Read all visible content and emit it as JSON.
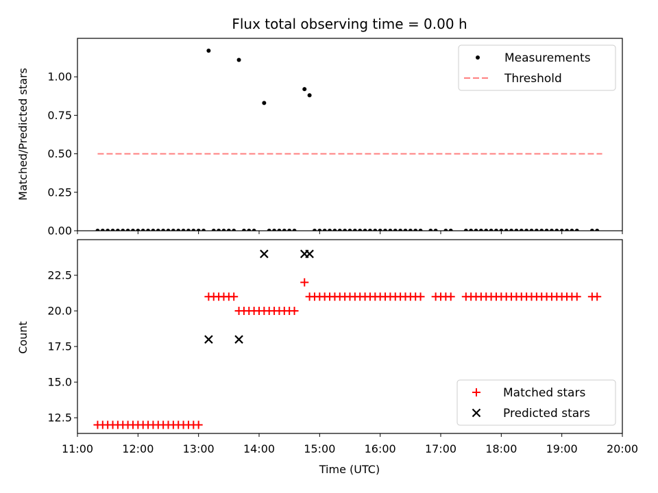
{
  "chart_data": [
    {
      "type": "scatter",
      "title": "Flux total observing time = 0.00 h",
      "xlabel": "",
      "ylabel": "Matched/Predicted stars",
      "xlim": [
        "11:00",
        "20:00"
      ],
      "ylim": [
        0,
        1.25
      ],
      "yticks": [
        "0.00",
        "0.25",
        "0.50",
        "0.75",
        "1.00"
      ],
      "legend": {
        "placement": "top-right",
        "entries": [
          "Measurements",
          "Threshold"
        ]
      },
      "series": [
        {
          "name": "Measurements",
          "marker": "dot",
          "color": "#000000",
          "points": [
            [
              "13:10",
              1.17
            ],
            [
              "13:40",
              1.11
            ],
            [
              "14:05",
              0.83
            ],
            [
              "14:45",
              0.92
            ],
            [
              "14:50",
              0.88
            ],
            [
              "11:20",
              0
            ],
            [
              "11:25",
              0
            ],
            [
              "11:30",
              0
            ],
            [
              "11:35",
              0
            ],
            [
              "11:40",
              0
            ],
            [
              "11:45",
              0
            ],
            [
              "11:50",
              0
            ],
            [
              "11:55",
              0
            ],
            [
              "12:00",
              0
            ],
            [
              "12:05",
              0
            ],
            [
              "12:10",
              0
            ],
            [
              "12:15",
              0
            ],
            [
              "12:20",
              0
            ],
            [
              "12:25",
              0
            ],
            [
              "12:30",
              0
            ],
            [
              "12:35",
              0
            ],
            [
              "12:40",
              0
            ],
            [
              "12:45",
              0
            ],
            [
              "12:50",
              0
            ],
            [
              "12:55",
              0
            ],
            [
              "13:00",
              0
            ],
            [
              "13:05",
              0
            ],
            [
              "13:15",
              0
            ],
            [
              "13:20",
              0
            ],
            [
              "13:25",
              0
            ],
            [
              "13:30",
              0
            ],
            [
              "13:35",
              0
            ],
            [
              "13:45",
              0
            ],
            [
              "13:50",
              0
            ],
            [
              "13:55",
              0
            ],
            [
              "14:10",
              0
            ],
            [
              "14:15",
              0
            ],
            [
              "14:20",
              0
            ],
            [
              "14:25",
              0
            ],
            [
              "14:30",
              0
            ],
            [
              "14:35",
              0
            ],
            [
              "14:55",
              0
            ],
            [
              "15:00",
              0
            ],
            [
              "15:05",
              0
            ],
            [
              "15:10",
              0
            ],
            [
              "15:15",
              0
            ],
            [
              "15:20",
              0
            ],
            [
              "15:25",
              0
            ],
            [
              "15:30",
              0
            ],
            [
              "15:35",
              0
            ],
            [
              "15:40",
              0
            ],
            [
              "15:45",
              0
            ],
            [
              "15:50",
              0
            ],
            [
              "15:55",
              0
            ],
            [
              "16:00",
              0
            ],
            [
              "16:05",
              0
            ],
            [
              "16:10",
              0
            ],
            [
              "16:15",
              0
            ],
            [
              "16:20",
              0
            ],
            [
              "16:25",
              0
            ],
            [
              "16:30",
              0
            ],
            [
              "16:35",
              0
            ],
            [
              "16:40",
              0
            ],
            [
              "16:50",
              0
            ],
            [
              "16:55",
              0
            ],
            [
              "17:05",
              0
            ],
            [
              "17:10",
              0
            ],
            [
              "17:25",
              0
            ],
            [
              "17:30",
              0
            ],
            [
              "17:35",
              0
            ],
            [
              "17:40",
              0
            ],
            [
              "17:45",
              0
            ],
            [
              "17:50",
              0
            ],
            [
              "17:55",
              0
            ],
            [
              "18:00",
              0
            ],
            [
              "18:05",
              0
            ],
            [
              "18:10",
              0
            ],
            [
              "18:15",
              0
            ],
            [
              "18:20",
              0
            ],
            [
              "18:25",
              0
            ],
            [
              "18:30",
              0
            ],
            [
              "18:35",
              0
            ],
            [
              "18:40",
              0
            ],
            [
              "18:45",
              0
            ],
            [
              "18:50",
              0
            ],
            [
              "18:55",
              0
            ],
            [
              "19:00",
              0
            ],
            [
              "19:05",
              0
            ],
            [
              "19:10",
              0
            ],
            [
              "19:15",
              0
            ],
            [
              "19:30",
              0
            ],
            [
              "19:35",
              0
            ]
          ]
        },
        {
          "name": "Threshold",
          "type": "line",
          "style": "dashed",
          "color": "#ff7f7f",
          "points": [
            [
              "11:20",
              0.5
            ],
            [
              "19:40",
              0.5
            ]
          ]
        }
      ]
    },
    {
      "type": "scatter",
      "title": "",
      "xlabel": "Time (UTC)",
      "ylabel": "Count",
      "xlim": [
        "11:00",
        "20:00"
      ],
      "ylim": [
        11.4,
        25.0
      ],
      "xticks": [
        "11:00",
        "12:00",
        "13:00",
        "14:00",
        "15:00",
        "16:00",
        "17:00",
        "18:00",
        "19:00",
        "20:00"
      ],
      "yticks": [
        "12.5",
        "15.0",
        "17.5",
        "20.0",
        "22.5"
      ],
      "legend": {
        "placement": "bottom-right",
        "entries": [
          "Matched stars",
          "Predicted stars"
        ]
      },
      "series": [
        {
          "name": "Matched stars",
          "marker": "plus",
          "color": "#ff0000",
          "points": [
            [
              "11:20",
              12
            ],
            [
              "11:25",
              12
            ],
            [
              "11:30",
              12
            ],
            [
              "11:35",
              12
            ],
            [
              "11:40",
              12
            ],
            [
              "11:45",
              12
            ],
            [
              "11:50",
              12
            ],
            [
              "11:55",
              12
            ],
            [
              "12:00",
              12
            ],
            [
              "12:05",
              12
            ],
            [
              "12:10",
              12
            ],
            [
              "12:15",
              12
            ],
            [
              "12:20",
              12
            ],
            [
              "12:25",
              12
            ],
            [
              "12:30",
              12
            ],
            [
              "12:35",
              12
            ],
            [
              "12:40",
              12
            ],
            [
              "12:45",
              12
            ],
            [
              "12:50",
              12
            ],
            [
              "12:55",
              12
            ],
            [
              "13:00",
              12
            ],
            [
              "13:10",
              21
            ],
            [
              "13:15",
              21
            ],
            [
              "13:20",
              21
            ],
            [
              "13:25",
              21
            ],
            [
              "13:30",
              21
            ],
            [
              "13:35",
              21
            ],
            [
              "13:40",
              20
            ],
            [
              "13:45",
              20
            ],
            [
              "13:50",
              20
            ],
            [
              "13:55",
              20
            ],
            [
              "14:00",
              20
            ],
            [
              "14:05",
              20
            ],
            [
              "14:10",
              20
            ],
            [
              "14:15",
              20
            ],
            [
              "14:20",
              20
            ],
            [
              "14:25",
              20
            ],
            [
              "14:30",
              20
            ],
            [
              "14:35",
              20
            ],
            [
              "14:45",
              22
            ],
            [
              "14:50",
              21
            ],
            [
              "14:55",
              21
            ],
            [
              "15:00",
              21
            ],
            [
              "15:05",
              21
            ],
            [
              "15:10",
              21
            ],
            [
              "15:15",
              21
            ],
            [
              "15:20",
              21
            ],
            [
              "15:25",
              21
            ],
            [
              "15:30",
              21
            ],
            [
              "15:35",
              21
            ],
            [
              "15:40",
              21
            ],
            [
              "15:45",
              21
            ],
            [
              "15:50",
              21
            ],
            [
              "15:55",
              21
            ],
            [
              "16:00",
              21
            ],
            [
              "16:05",
              21
            ],
            [
              "16:10",
              21
            ],
            [
              "16:15",
              21
            ],
            [
              "16:20",
              21
            ],
            [
              "16:25",
              21
            ],
            [
              "16:30",
              21
            ],
            [
              "16:35",
              21
            ],
            [
              "16:40",
              21
            ],
            [
              "16:55",
              21
            ],
            [
              "17:00",
              21
            ],
            [
              "17:05",
              21
            ],
            [
              "17:10",
              21
            ],
            [
              "17:25",
              21
            ],
            [
              "17:30",
              21
            ],
            [
              "17:35",
              21
            ],
            [
              "17:40",
              21
            ],
            [
              "17:45",
              21
            ],
            [
              "17:50",
              21
            ],
            [
              "17:55",
              21
            ],
            [
              "18:00",
              21
            ],
            [
              "18:05",
              21
            ],
            [
              "18:10",
              21
            ],
            [
              "18:15",
              21
            ],
            [
              "18:20",
              21
            ],
            [
              "18:25",
              21
            ],
            [
              "18:30",
              21
            ],
            [
              "18:35",
              21
            ],
            [
              "18:40",
              21
            ],
            [
              "18:45",
              21
            ],
            [
              "18:50",
              21
            ],
            [
              "18:55",
              21
            ],
            [
              "19:00",
              21
            ],
            [
              "19:05",
              21
            ],
            [
              "19:10",
              21
            ],
            [
              "19:15",
              21
            ],
            [
              "19:30",
              21
            ],
            [
              "19:35",
              21
            ]
          ]
        },
        {
          "name": "Predicted stars",
          "marker": "x",
          "color": "#000000",
          "points": [
            [
              "13:10",
              18
            ],
            [
              "13:40",
              18
            ],
            [
              "14:05",
              24
            ],
            [
              "14:45",
              24
            ],
            [
              "14:50",
              24
            ]
          ]
        }
      ]
    }
  ]
}
